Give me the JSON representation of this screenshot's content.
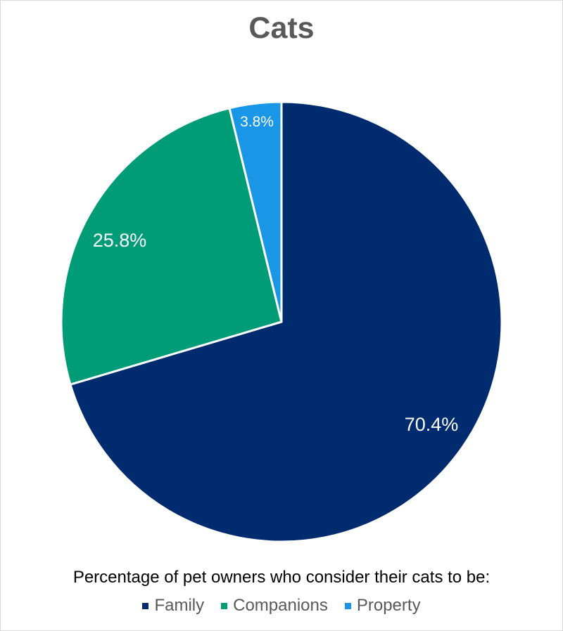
{
  "chart_data": {
    "type": "pie",
    "title": "Cats",
    "subtitle": "Percentage of pet owners who consider their cats to be:",
    "categories": [
      "Family",
      "Companions",
      "Property"
    ],
    "values": [
      70.4,
      25.8,
      3.8
    ],
    "colors": [
      "#002b6f",
      "#009b77",
      "#1a96e6"
    ],
    "data_labels": [
      "70.4%",
      "25.8%",
      "3.8%"
    ],
    "legend_position": "bottom",
    "start_angle_deg": 0,
    "direction": "clockwise"
  },
  "header": {
    "title": "Cats"
  },
  "footer": {
    "subtitle": "Percentage of pet owners who consider their cats to be:",
    "legend": [
      {
        "label": "Family",
        "color": "#002b6f"
      },
      {
        "label": "Companions",
        "color": "#009b77"
      },
      {
        "label": "Property",
        "color": "#1a96e6"
      }
    ]
  },
  "labels": {
    "family": "70.4%",
    "companions": "25.8%",
    "property": "3.8%"
  }
}
